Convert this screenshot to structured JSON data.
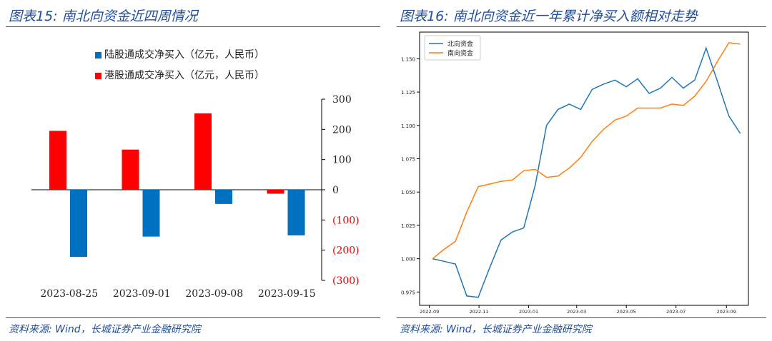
{
  "left": {
    "title": "图表15:  南北向资金近四周情况",
    "source": "资料来源:  Wind，长城证券产业金融研究院",
    "legend": [
      {
        "label": "陆股通成交净买入（亿元，人民币）",
        "color": "#0070c0"
      },
      {
        "label": "港股通成交净买入（亿元，人民币）",
        "color": "#ff0000"
      }
    ],
    "y_ticks": [
      {
        "value": 300,
        "label": "300",
        "color": "#222222"
      },
      {
        "value": 200,
        "label": "200",
        "color": "#222222"
      },
      {
        "value": 100,
        "label": "100",
        "color": "#222222"
      },
      {
        "value": 0,
        "label": "0",
        "color": "#222222"
      },
      {
        "value": -100,
        "label": "(100)",
        "color": "#e00000"
      },
      {
        "value": -200,
        "label": "(200)",
        "color": "#e00000"
      },
      {
        "value": -300,
        "label": "(300)",
        "color": "#e00000"
      }
    ]
  },
  "right": {
    "title": "图表16:  南北向资金近一年累计净买入额相对走势",
    "source": "资料来源:  Wind，长城证券产业金融研究院",
    "y_ticks": [
      "1.150",
      "1.125",
      "1.100",
      "1.075",
      "1.050",
      "1.025",
      "1.000",
      "0.975"
    ],
    "x_ticks": [
      "2022-09",
      "2022-11",
      "2023-01",
      "2023-03",
      "2023-05",
      "2023-07",
      "2023-09"
    ]
  },
  "chart_data": [
    {
      "type": "bar",
      "categories": [
        "2023-08-25",
        "2023-09-01",
        "2023-09-08",
        "2023-09-15"
      ],
      "series": [
        {
          "name": "陆股通成交净买入（亿元，人民币）",
          "color": "#0070c0",
          "values": [
            -222,
            -155,
            -47,
            -151
          ]
        },
        {
          "name": "港股通成交净买入（亿元，人民币）",
          "color": "#ff0000",
          "values": [
            195,
            133,
            253,
            -13
          ]
        }
      ],
      "ylim": [
        -300,
        300
      ],
      "ylabel": "",
      "xlabel": ""
    },
    {
      "type": "line",
      "x": [
        "2022-09-05",
        "2022-09-19",
        "2022-10-03",
        "2022-10-17",
        "2022-10-31",
        "2022-11-14",
        "2022-11-28",
        "2022-12-12",
        "2022-12-26",
        "2023-01-09",
        "2023-01-23",
        "2023-02-06",
        "2023-02-20",
        "2023-03-06",
        "2023-03-20",
        "2023-04-03",
        "2023-04-17",
        "2023-05-01",
        "2023-05-15",
        "2023-05-29",
        "2023-06-12",
        "2023-06-26",
        "2023-07-10",
        "2023-07-24",
        "2023-08-07",
        "2023-08-21",
        "2023-09-04",
        "2023-09-18"
      ],
      "series": [
        {
          "name": "北向资金",
          "color": "#1f77b4",
          "values": [
            1.0,
            0.998,
            0.996,
            0.972,
            0.971,
            0.993,
            1.014,
            1.02,
            1.023,
            1.055,
            1.1,
            1.112,
            1.116,
            1.112,
            1.127,
            1.131,
            1.134,
            1.129,
            1.135,
            1.124,
            1.128,
            1.136,
            1.128,
            1.134,
            1.158,
            1.133,
            1.107,
            1.094
          ]
        },
        {
          "name": "南向资金",
          "color": "#ff7f0e",
          "values": [
            1.0,
            1.007,
            1.013,
            1.035,
            1.054,
            1.056,
            1.058,
            1.059,
            1.066,
            1.067,
            1.061,
            1.062,
            1.068,
            1.076,
            1.088,
            1.097,
            1.104,
            1.107,
            1.113,
            1.113,
            1.113,
            1.116,
            1.115,
            1.122,
            1.133,
            1.148,
            1.162,
            1.161
          ]
        }
      ],
      "ylim": [
        0.965,
        1.17
      ],
      "legend": "top-left",
      "xlabel": "",
      "ylabel": ""
    }
  ]
}
